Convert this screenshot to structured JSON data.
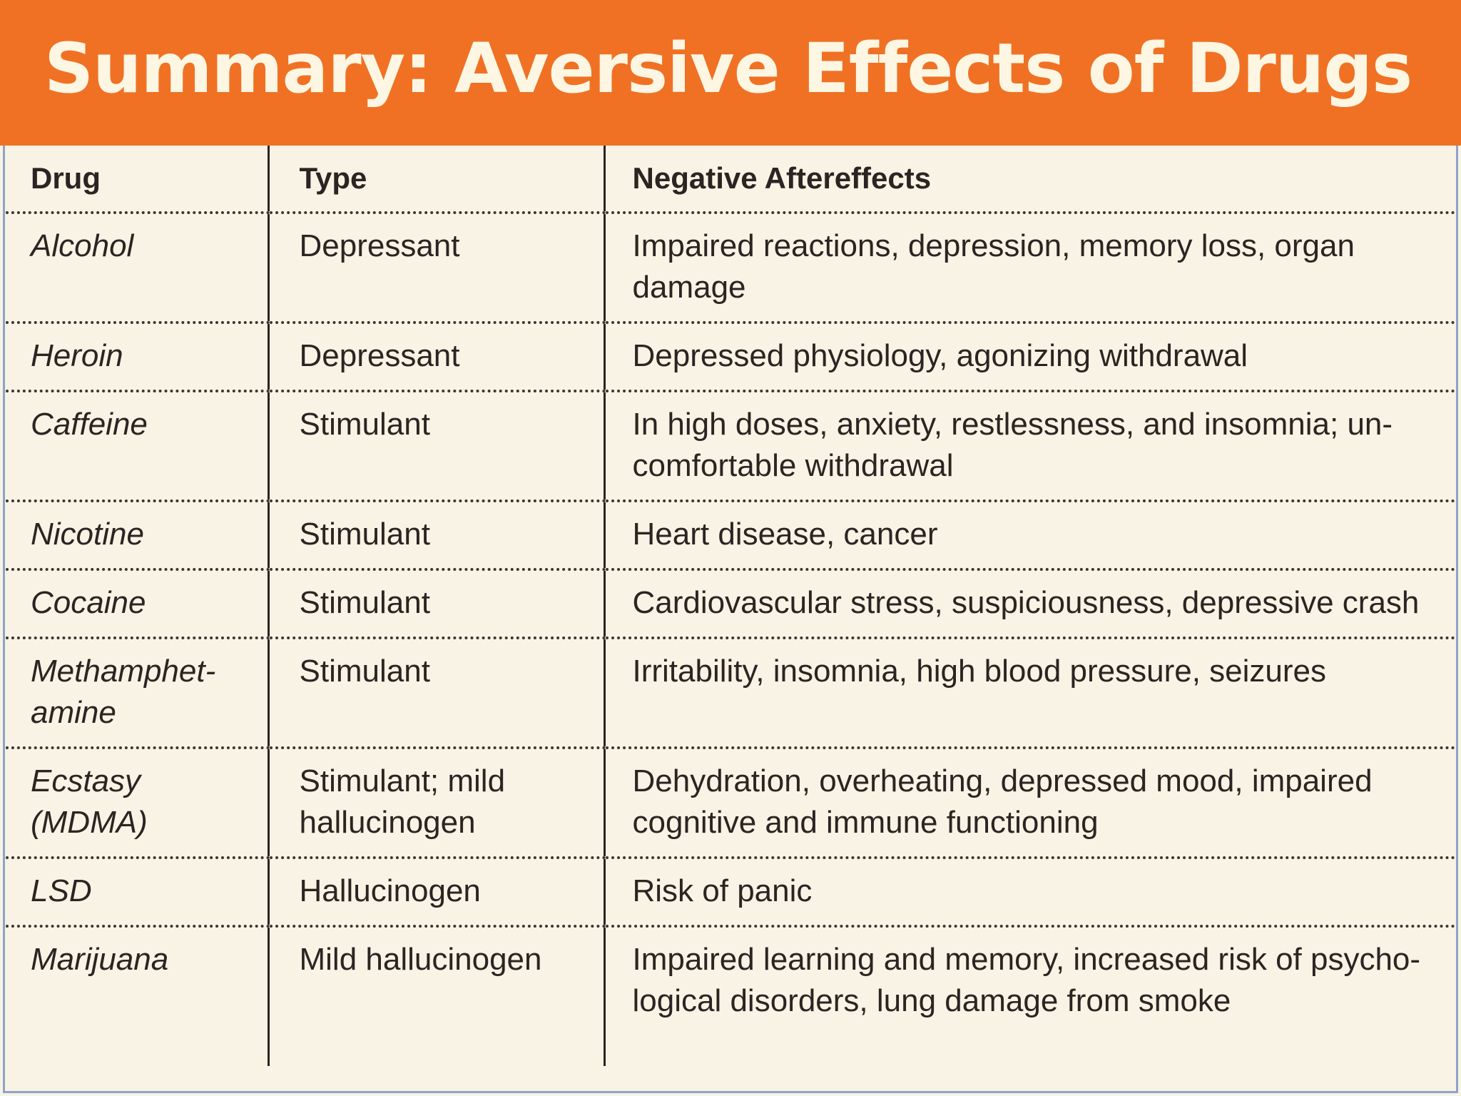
{
  "title": "Summary: Aversive Effects of Drugs",
  "table": {
    "headers": {
      "drug": "Drug",
      "type": "Type",
      "aftereffects": "Negative Aftereffects"
    },
    "rows": [
      {
        "drug": "Alcohol",
        "type": "Depressant",
        "aftereffects": "Impaired reactions, depression, memory loss, organ damage"
      },
      {
        "drug": "Heroin",
        "type": "Depressant",
        "aftereffects": "Depressed physiology, agonizing withdrawal"
      },
      {
        "drug": "Caffeine",
        "type": "Stimulant",
        "aftereffects": "In high doses, anxiety, restlessness, and insomnia; un­comfortable withdrawal"
      },
      {
        "drug": "Nicotine",
        "type": "Stimulant",
        "aftereffects": "Heart disease, cancer"
      },
      {
        "drug": "Cocaine",
        "type": "Stimulant",
        "aftereffects": "Cardiovascular stress, suspiciousness, depressive crash"
      },
      {
        "drug": "Methamphet­amine",
        "type": "Stimulant",
        "aftereffects": "Irritability, insomnia, high blood pressure, seizures"
      },
      {
        "drug": "Ecstasy (MDMA)",
        "type": "Stimulant; mild hallucinogen",
        "aftereffects": "Dehydration, overheating, depressed mood, impaired cognitive and immune functioning"
      },
      {
        "drug": "LSD",
        "type": "Hallucinogen",
        "aftereffects": "Risk of panic"
      },
      {
        "drug": "Marijuana",
        "type": "Mild hallucinogen",
        "aftereffects": "Impaired learning and memory, increased risk of psycho­logical disorders, lung damage from smoke"
      }
    ]
  },
  "colors": {
    "title_bar": "#f07124",
    "title_text": "#fdf6e3",
    "table_background": "#f8f3e4",
    "frame_border": "#8fa3c8"
  }
}
